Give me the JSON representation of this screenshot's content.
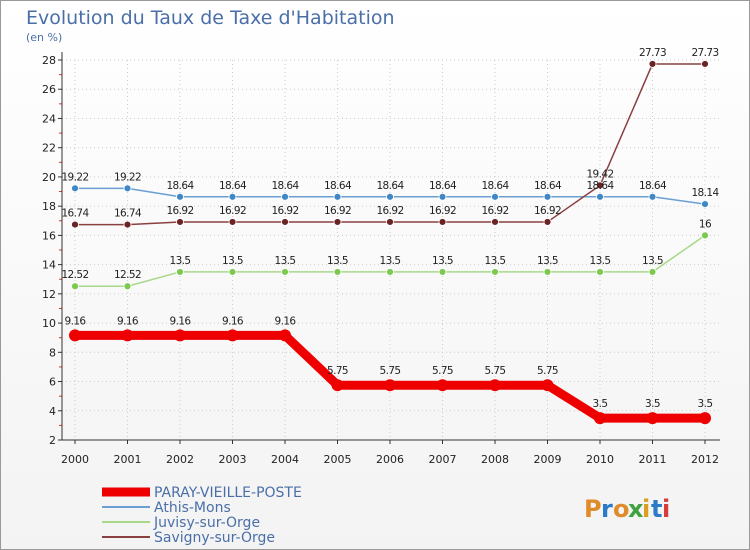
{
  "colors": {
    "grid": "#cccccc",
    "axis": "#333333",
    "frame": "#999999",
    "text_blue": "#4a6fa8"
  },
  "logo": {
    "text": "Proxiti",
    "letter_colors": [
      "#e08b2a",
      "#2b7bc9",
      "#e08b2a",
      "#3fa13f",
      "#d9a020",
      "#2b7bc9",
      "#d93b3b"
    ]
  },
  "chart_data": {
    "type": "line",
    "title": "Evolution du Taux de Taxe d'Habitation",
    "subtitle": "(en %)",
    "x": [
      "2000",
      "2001",
      "2002",
      "2003",
      "2004",
      "2005",
      "2006",
      "2007",
      "2008",
      "2009",
      "2010",
      "2011",
      "2012"
    ],
    "ylim": [
      2,
      28
    ],
    "yticks": [
      2,
      4,
      6,
      8,
      10,
      12,
      14,
      16,
      18,
      20,
      22,
      24,
      26,
      28
    ],
    "grid": true,
    "legend_position": "bottom-left",
    "series": [
      {
        "name": "PARAY-VIEILLE-POSTE",
        "color": "#ee0000",
        "values": [
          9.16,
          9.16,
          9.16,
          9.16,
          9.16,
          5.75,
          5.75,
          5.75,
          5.75,
          5.75,
          3.5,
          3.5,
          3.5
        ],
        "labels": [
          "9.16",
          "9.16",
          "9.16",
          "9.16",
          "9.16",
          "5.75",
          "5.75",
          "5.75",
          "5.75",
          "5.75",
          "3.5",
          "3.5",
          "3.5"
        ]
      },
      {
        "name": "Athis-Mons",
        "color": "#6b9fd3",
        "point_color": "#3f87c6",
        "values": [
          19.22,
          19.22,
          18.64,
          18.64,
          18.64,
          18.64,
          18.64,
          18.64,
          18.64,
          18.64,
          18.64,
          18.64,
          18.14
        ],
        "labels": [
          "19.22",
          "19.22",
          "18.64",
          "18.64",
          "18.64",
          "18.64",
          "18.64",
          "18.64",
          "18.64",
          "18.64",
          "18.64",
          "18.64",
          "18.14"
        ]
      },
      {
        "name": "Juvisy-sur-Orge",
        "color": "#a8d88a",
        "point_color": "#7cc94f",
        "values": [
          12.52,
          12.52,
          13.5,
          13.5,
          13.5,
          13.5,
          13.5,
          13.5,
          13.5,
          13.5,
          13.5,
          13.5,
          16
        ],
        "labels": [
          "12.52",
          "12.52",
          "13.5",
          "13.5",
          "13.5",
          "13.5",
          "13.5",
          "13.5",
          "13.5",
          "13.5",
          "13.5",
          "13.5",
          "16"
        ]
      },
      {
        "name": "Savigny-sur-Orge",
        "color": "#8a4040",
        "point_color": "#6b2424",
        "values": [
          16.74,
          16.74,
          16.92,
          16.92,
          16.92,
          16.92,
          16.92,
          16.92,
          16.92,
          16.92,
          19.42,
          27.73,
          27.73
        ],
        "labels": [
          "16.74",
          "16.74",
          "16.92",
          "16.92",
          "16.92",
          "16.92",
          "16.92",
          "16.92",
          "16.92",
          "16.92",
          "19.42",
          "27.73",
          "27.73"
        ]
      }
    ]
  }
}
